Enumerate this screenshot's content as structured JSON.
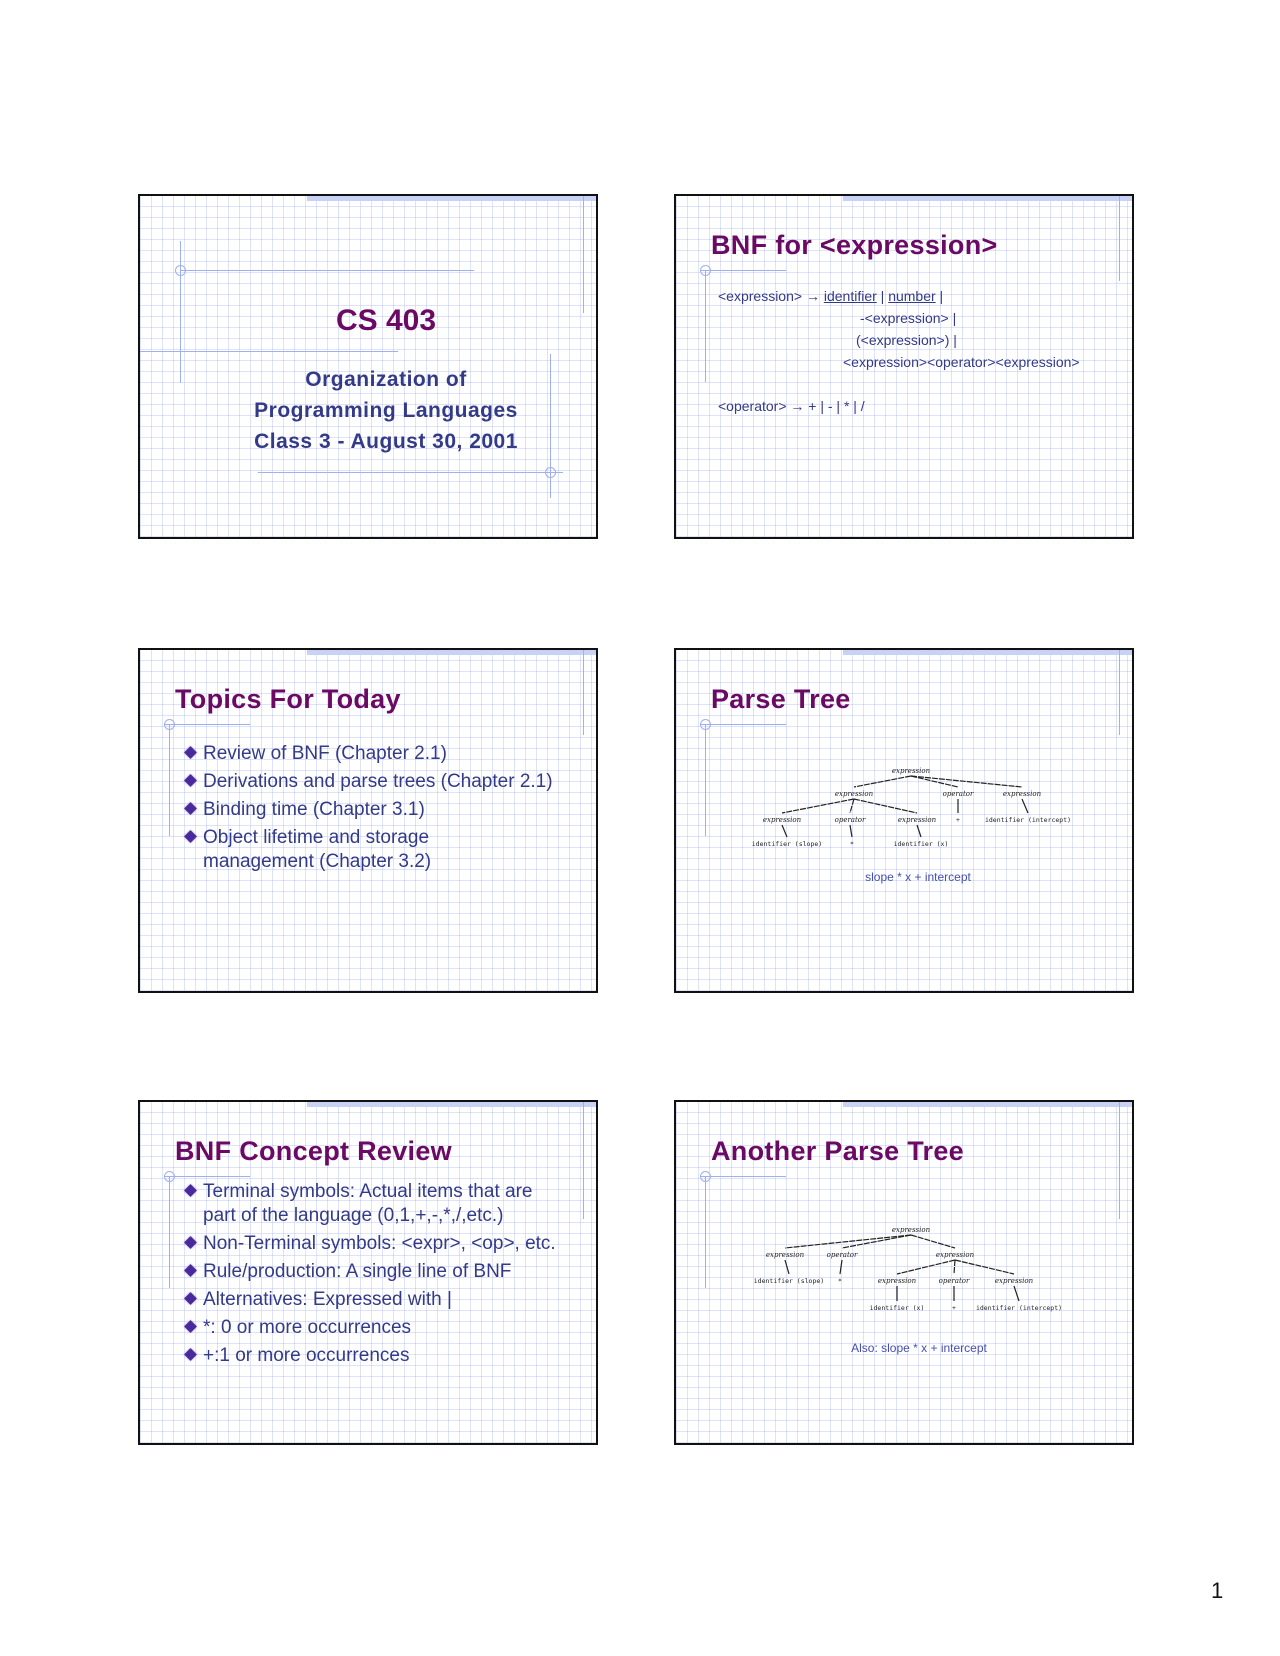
{
  "page_number": "1",
  "slides": {
    "s1": {
      "title": "CS 403",
      "subtitle_lines": [
        "Organization of",
        "Programming Languages",
        "Class 3 - August 30, 2001"
      ]
    },
    "s2": {
      "title": "BNF for <expression>",
      "rules": {
        "lhs": "<expression>",
        "arrow": "→",
        "alt1_a": "identifier",
        "sep": "|",
        "alt1_b": "number",
        "alt2": "-<expression>  |",
        "alt3": "(<expression>)  |",
        "alt4": "<expression><operator><expression>",
        "op_rule": "<operator>  → +  |  -  |  *  |  /"
      }
    },
    "s3": {
      "title": "Topics For Today",
      "bullets": [
        "Review of BNF  (Chapter 2.1)",
        "Derivations and parse trees (Chapter 2.1)",
        "Binding time (Chapter 3.1)",
        "Object lifetime and storage management (Chapter 3.2)"
      ]
    },
    "s4": {
      "title": "Parse Tree",
      "caption": "slope * x + intercept",
      "tree": [
        {
          "label": "expression",
          "parent": null,
          "style": "nt"
        },
        {
          "label": "expression",
          "parent": 0,
          "style": "nt"
        },
        {
          "label": "operator",
          "parent": 0,
          "style": "nt"
        },
        {
          "label": "expression",
          "parent": 0,
          "style": "nt"
        },
        {
          "label": "expression",
          "parent": 1,
          "style": "nt"
        },
        {
          "label": "operator",
          "parent": 1,
          "style": "nt"
        },
        {
          "label": "expression",
          "parent": 1,
          "style": "nt"
        },
        {
          "label": "+",
          "parent": 2,
          "style": "t"
        },
        {
          "label": "identifier (intercept)",
          "parent": 3,
          "style": "t"
        },
        {
          "label": "identifier (slope)",
          "parent": 4,
          "style": "t"
        },
        {
          "label": "*",
          "parent": 5,
          "style": "t"
        },
        {
          "label": "identifier (x)",
          "parent": 6,
          "style": "t"
        }
      ]
    },
    "s5": {
      "title": "BNF Concept Review",
      "bullets": [
        "Terminal symbols: Actual items that are part of the language (0,1,+,-,*,/,etc.)",
        "Non-Terminal symbols: <expr>, <op>, etc.",
        "Rule/production: A single line of BNF",
        "Alternatives: Expressed with |",
        "*: 0 or more occurrences",
        "+:1 or more occurrences"
      ]
    },
    "s6": {
      "title": "Another Parse Tree",
      "caption": "Also: slope * x + intercept",
      "tree": [
        {
          "label": "expression",
          "parent": null,
          "style": "nt"
        },
        {
          "label": "expression",
          "parent": 0,
          "style": "nt"
        },
        {
          "label": "operator",
          "parent": 0,
          "style": "nt"
        },
        {
          "label": "expression",
          "parent": 0,
          "style": "nt"
        },
        {
          "label": "identifier (slope)",
          "parent": 1,
          "style": "t"
        },
        {
          "label": "*",
          "parent": 2,
          "style": "t"
        },
        {
          "label": "expression",
          "parent": 3,
          "style": "nt"
        },
        {
          "label": "operator",
          "parent": 3,
          "style": "nt"
        },
        {
          "label": "expression",
          "parent": 3,
          "style": "nt"
        },
        {
          "label": "identifier (x)",
          "parent": 6,
          "style": "t"
        },
        {
          "label": "+",
          "parent": 7,
          "style": "t"
        },
        {
          "label": "identifier (intercept)",
          "parent": 8,
          "style": "t"
        }
      ]
    }
  },
  "colors": {
    "title": "#6a0a64",
    "body": "#333a88",
    "grid": "#a0afeb"
  }
}
